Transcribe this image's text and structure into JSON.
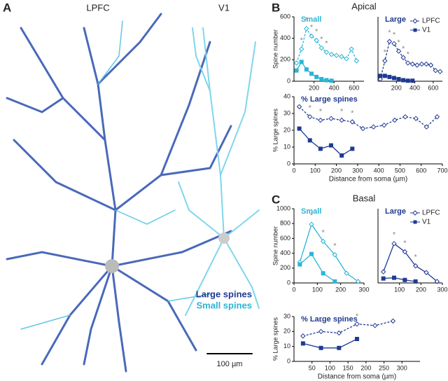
{
  "panel_a": {
    "letter": "A",
    "region_left": "LPFC",
    "region_right": "V1",
    "legend_large": "Large spines",
    "legend_small": "Small spines",
    "scale_bar": "100 µm"
  },
  "panel_b": {
    "letter": "B",
    "title": "Apical"
  },
  "panel_c": {
    "letter": "C",
    "title": "Basal"
  },
  "chart_data": [
    {
      "type": "line",
      "title": "Small",
      "title_color": "#29b5d6",
      "ylabel": "Spine number",
      "xlim": [
        0,
        700
      ],
      "xticks": [
        200,
        400,
        600
      ],
      "ylim": [
        0,
        600
      ],
      "yticks": [
        0,
        200,
        400,
        600
      ],
      "series": [
        {
          "name": "LPFC",
          "color": "#29b5d6",
          "dashed": true,
          "marker": "open",
          "x": [
            25,
            75,
            125,
            175,
            225,
            275,
            325,
            375,
            425,
            475,
            525,
            575,
            625
          ],
          "values": [
            170,
            300,
            490,
            420,
            380,
            310,
            270,
            250,
            240,
            230,
            210,
            300,
            190
          ]
        },
        {
          "name": "V1",
          "color": "#29b5d6",
          "dashed": false,
          "marker": "filled",
          "x": [
            25,
            75,
            125,
            175,
            225,
            275,
            325,
            375
          ],
          "values": [
            100,
            180,
            110,
            70,
            40,
            20,
            10,
            5
          ]
        }
      ],
      "annotations": {
        "text": "*",
        "x": [
          75,
          125,
          175,
          225,
          275,
          325
        ]
      }
    },
    {
      "type": "line",
      "title": "Large",
      "title_color": "#1f3a93",
      "legend": true,
      "xlim": [
        0,
        700
      ],
      "xticks": [
        200,
        400,
        600
      ],
      "ylim": [
        0,
        600
      ],
      "series": [
        {
          "name": "LPFC",
          "color": "#1f3a93",
          "dashed": true,
          "marker": "open",
          "x": [
            25,
            75,
            125,
            175,
            225,
            275,
            325,
            375,
            425,
            475,
            525,
            575,
            625,
            675
          ],
          "values": [
            20,
            190,
            370,
            350,
            280,
            220,
            170,
            160,
            150,
            160,
            160,
            150,
            100,
            90
          ]
        },
        {
          "name": "V1",
          "color": "#1f3a93",
          "dashed": false,
          "marker": "filled",
          "x": [
            25,
            75,
            125,
            175,
            225,
            275,
            325,
            375
          ],
          "values": [
            50,
            50,
            40,
            30,
            20,
            10,
            5,
            5
          ]
        }
      ],
      "annotations": {
        "text": "*",
        "x": [
          75,
          125,
          175,
          225,
          275,
          325
        ]
      }
    },
    {
      "type": "line",
      "title": "% Large spines",
      "title_color": "#1f3a93",
      "ylabel": "% Large spines",
      "xlabel": "Distance from soma (µm)",
      "xlim": [
        0,
        700
      ],
      "xticks": [
        0,
        100,
        200,
        300,
        400,
        500,
        600,
        700
      ],
      "ylim": [
        0,
        40
      ],
      "yticks": [
        0,
        10,
        20,
        30,
        40
      ],
      "series": [
        {
          "name": "LPFC",
          "color": "#1f3a93",
          "dashed": true,
          "marker": "open",
          "x": [
            25,
            75,
            125,
            175,
            225,
            275,
            325,
            375,
            425,
            475,
            525,
            575,
            625,
            675
          ],
          "values": [
            34,
            28,
            26,
            27,
            26,
            25,
            21,
            22,
            23,
            26,
            28,
            27,
            22,
            28
          ]
        },
        {
          "name": "V1",
          "color": "#1f3a93",
          "dashed": false,
          "marker": "filled",
          "x": [
            25,
            75,
            125,
            175,
            225,
            275
          ],
          "values": [
            21,
            14,
            9,
            11,
            5,
            9
          ]
        }
      ],
      "annotations": {
        "text": "*",
        "x": [
          75,
          125,
          225,
          275
        ]
      }
    },
    {
      "type": "line",
      "title": "Small",
      "title_color": "#29b5d6",
      "ylabel": "Spine number",
      "xlim": [
        0,
        300
      ],
      "xticks": [
        0,
        100,
        200,
        300
      ],
      "ylim": [
        0,
        1000
      ],
      "yticks": [
        0,
        200,
        400,
        600,
        800,
        1000
      ],
      "series": [
        {
          "name": "LPFC",
          "color": "#29b5d6",
          "dashed": false,
          "marker": "open",
          "x": [
            25,
            75,
            125,
            175,
            225,
            275
          ],
          "values": [
            280,
            790,
            560,
            380,
            130,
            20
          ]
        },
        {
          "name": "V1",
          "color": "#29b5d6",
          "dashed": false,
          "marker": "filled",
          "x": [
            25,
            75,
            125,
            175
          ],
          "values": [
            250,
            390,
            130,
            20
          ]
        }
      ],
      "annotations": {
        "text": "*",
        "x": [
          75,
          125,
          175
        ]
      }
    },
    {
      "type": "line",
      "title": "Large",
      "title_color": "#1f3a93",
      "legend": true,
      "xlim": [
        0,
        300
      ],
      "xticks": [
        100,
        200,
        300
      ],
      "ylim": [
        0,
        1000
      ],
      "series": [
        {
          "name": "LPFC",
          "color": "#1f3a93",
          "dashed": false,
          "marker": "open",
          "x": [
            25,
            75,
            125,
            175,
            225,
            275
          ],
          "values": [
            150,
            530,
            420,
            230,
            140,
            20
          ]
        },
        {
          "name": "V1",
          "color": "#1f3a93",
          "dashed": false,
          "marker": "filled",
          "x": [
            25,
            75,
            125,
            175
          ],
          "values": [
            60,
            70,
            40,
            20
          ]
        }
      ],
      "annotations": {
        "text": "*",
        "x": [
          75,
          125,
          175
        ]
      }
    },
    {
      "type": "line",
      "title": "% Large spines",
      "title_color": "#1f3a93",
      "ylabel": "% Large spines",
      "xlabel": "Distance from soma (µm)",
      "xlim": [
        0,
        350
      ],
      "xticks": [
        50,
        100,
        150,
        200,
        250,
        300
      ],
      "ylim": [
        0,
        30
      ],
      "yticks": [
        0,
        10,
        20,
        30
      ],
      "series": [
        {
          "name": "LPFC",
          "color": "#1f3a93",
          "dashed": true,
          "marker": "open",
          "x": [
            25,
            75,
            125,
            175,
            225,
            275
          ],
          "values": [
            17,
            20,
            19,
            25,
            24,
            27
          ]
        },
        {
          "name": "V1",
          "color": "#1f3a93",
          "dashed": false,
          "marker": "filled",
          "x": [
            25,
            75,
            125,
            175
          ],
          "values": [
            12,
            9,
            9,
            15
          ]
        }
      ],
      "annotations": {
        "text": "*",
        "x": [
          75,
          125,
          175
        ]
      }
    }
  ]
}
